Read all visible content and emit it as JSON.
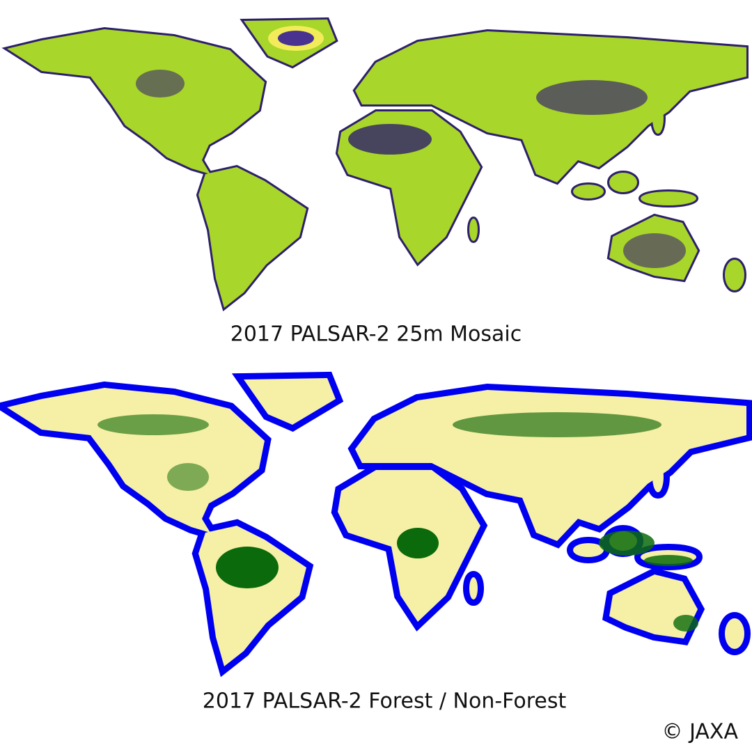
{
  "captions": {
    "mosaic": "2017 PALSAR-2 25m Mosaic",
    "forest": "2017 PALSAR-2 Forest / Non-Forest"
  },
  "copyright": "© JAXA"
}
